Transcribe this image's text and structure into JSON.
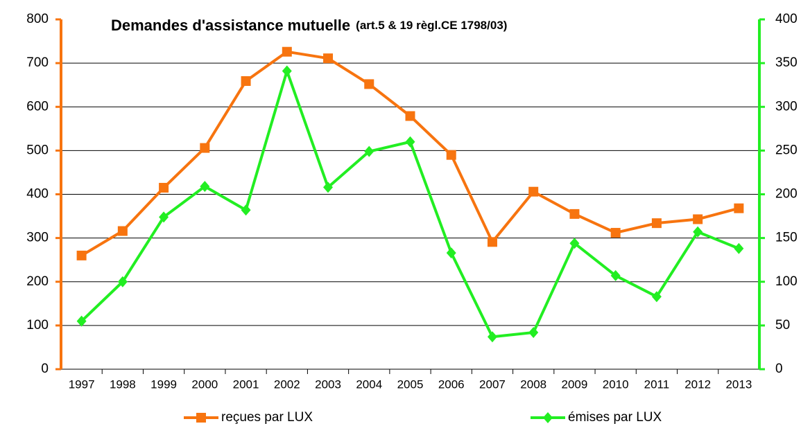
{
  "chart_data": {
    "type": "line",
    "title": "Demandes d'assistance mutuelle",
    "title_note": "(art.5 & 19 règl.CE 1798/03)",
    "categories": [
      "1997",
      "1998",
      "1999",
      "2000",
      "2001",
      "2002",
      "2003",
      "2004",
      "2005",
      "2006",
      "2007",
      "2008",
      "2009",
      "2010",
      "2011",
      "2012",
      "2013"
    ],
    "series": [
      {
        "name": "reçues par LUX",
        "color": "#f7740f",
        "marker": "square",
        "values": [
          260,
          316,
          415,
          506,
          659,
          726,
          711,
          652,
          579,
          490,
          291,
          406,
          355,
          312,
          334,
          343,
          368
        ]
      },
      {
        "name": "émises par LUX",
        "color": "#22ee22",
        "marker": "diamond",
        "axis": "y2",
        "values": [
          55,
          100,
          174,
          209,
          182,
          341,
          208,
          249,
          260,
          133,
          37,
          42,
          144,
          107,
          83,
          157,
          138
        ]
      }
    ],
    "ylim": [
      0,
      800
    ],
    "yticks": [
      0,
      100,
      200,
      300,
      400,
      500,
      600,
      700,
      800
    ],
    "y2lim": [
      0,
      400
    ],
    "y2ticks": [
      0,
      50,
      100,
      150,
      200,
      250,
      300,
      350,
      400
    ],
    "grid": true,
    "legend": "bottom"
  }
}
